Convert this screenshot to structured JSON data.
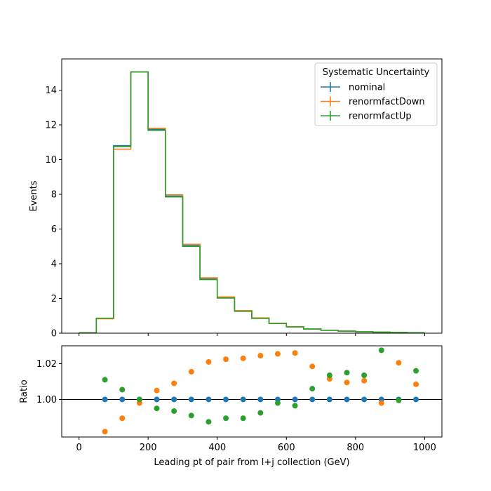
{
  "chart_data": {
    "type": "histogram",
    "xlabel": "Leading pt of pair from l+j collection (GeV)",
    "xlim": [
      -50,
      1050
    ],
    "xticks": [
      0,
      200,
      400,
      600,
      800,
      1000
    ],
    "bin_edges": [
      0,
      50,
      100,
      150,
      200,
      250,
      300,
      350,
      400,
      450,
      500,
      550,
      600,
      650,
      700,
      750,
      800,
      850,
      900,
      950,
      1000
    ],
    "top_panel": {
      "ylabel": "Events",
      "ylim": [
        0,
        15.8
      ],
      "yticks": [
        0,
        2,
        4,
        6,
        8,
        10,
        12,
        14
      ],
      "grid": false,
      "series": [
        {
          "name": "nominal",
          "color": "#1f77b4",
          "values": [
            0.02,
            0.85,
            10.8,
            15.05,
            11.75,
            7.9,
            5.05,
            3.12,
            2.04,
            1.27,
            0.86,
            0.56,
            0.36,
            0.24,
            0.17,
            0.12,
            0.08,
            0.06,
            0.04,
            0.03
          ]
        },
        {
          "name": "renormfactDown",
          "color": "#ff7f0e",
          "values": [
            0.02,
            0.83,
            10.6,
            15.05,
            11.8,
            7.97,
            5.12,
            3.19,
            2.09,
            1.3,
            0.88,
            0.57,
            0.37,
            0.24,
            0.17,
            0.12,
            0.08,
            0.06,
            0.04,
            0.03
          ]
        },
        {
          "name": "renormfactUp",
          "color": "#2ca02c",
          "values": [
            0.02,
            0.86,
            10.75,
            15.05,
            11.68,
            7.85,
            5.0,
            3.09,
            2.02,
            1.26,
            0.85,
            0.56,
            0.36,
            0.24,
            0.17,
            0.12,
            0.08,
            0.06,
            0.04,
            0.03
          ]
        }
      ],
      "legend": {
        "title": "Systematic Uncertainty",
        "placement": "top-right"
      }
    },
    "bottom_panel": {
      "ylabel": "Ratio",
      "ylim": [
        0.979,
        1.03
      ],
      "yticks": [
        1.0,
        1.02
      ],
      "ytick_labels": [
        "1.00",
        "1.02"
      ],
      "reference_line": 1.0,
      "x": [
        75,
        125,
        175,
        225,
        275,
        325,
        375,
        425,
        475,
        525,
        575,
        625,
        675,
        725,
        775,
        825,
        875,
        925,
        975
      ],
      "series": [
        {
          "name": "nominal",
          "color": "#1f77b4",
          "values": [
            1.0,
            1.0,
            1.0,
            1.0,
            1.0,
            1.0,
            1.0,
            1.0,
            1.0,
            1.0,
            1.0,
            1.0,
            1.0,
            1.0,
            1.0,
            1.0,
            1.0,
            1.0,
            1.0
          ]
        },
        {
          "name": "renormfactDown",
          "color": "#ff7f0e",
          "values": [
            0.982,
            0.9895,
            0.998,
            1.005,
            1.009,
            1.0155,
            1.021,
            1.0225,
            1.023,
            1.0245,
            1.0255,
            1.026,
            1.0185,
            1.0115,
            1.0095,
            1.0105,
            0.998,
            1.0205,
            1.0085
          ]
        },
        {
          "name": "renormfactUp",
          "color": "#2ca02c",
          "values": [
            1.011,
            1.0055,
            1.0,
            0.995,
            0.9935,
            0.991,
            0.9875,
            0.9895,
            0.9895,
            0.9925,
            0.998,
            0.9965,
            1.006,
            1.0135,
            1.015,
            1.0135,
            1.0275,
            0.9995,
            1.016
          ]
        }
      ]
    }
  }
}
